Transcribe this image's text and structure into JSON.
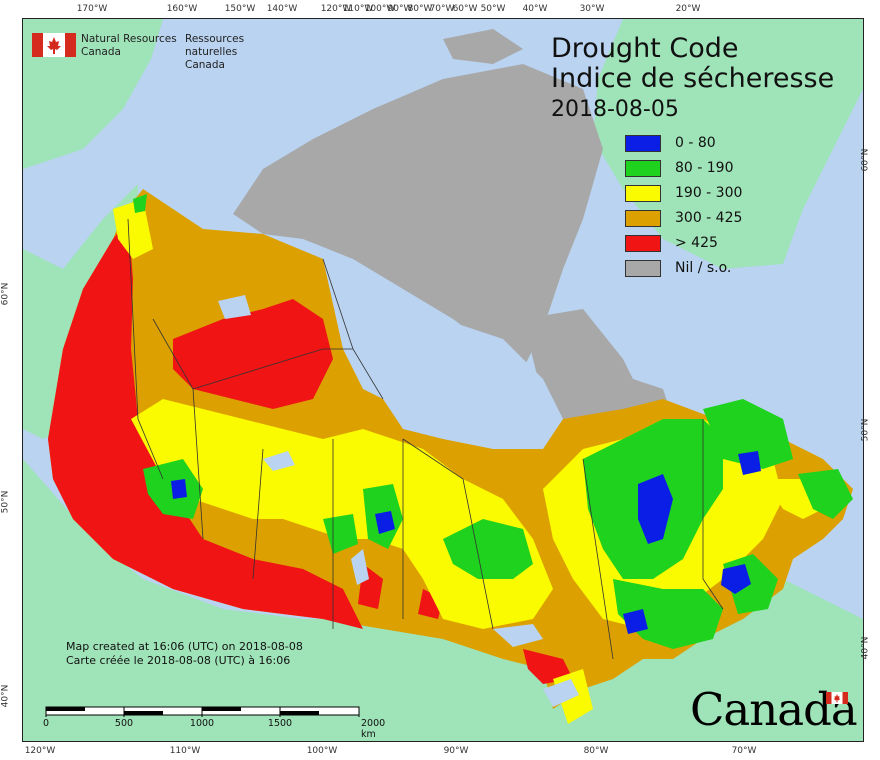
{
  "org": {
    "name_en_line1": "Natural Resources",
    "name_en_line2": "Canada",
    "name_fr_line1": "Ressources naturelles",
    "name_fr_line2": "Canada"
  },
  "title": {
    "en": "Drought Code",
    "fr": "Indice de sécheresse",
    "date": "2018-08-05"
  },
  "legend": [
    {
      "label": "0 - 80",
      "color": "#0a1ee6"
    },
    {
      "label": "80 - 190",
      "color": "#1ed21e"
    },
    {
      "label": "190 - 300",
      "color": "#fafa00"
    },
    {
      "label": "300 - 425",
      "color": "#dca000"
    },
    {
      "label": "> 425",
      "color": "#f01414"
    },
    {
      "label": "Nil / s.o.",
      "color": "#a8a8a8"
    }
  ],
  "credits": {
    "en": "Map created at 16:06 (UTC) on 2018-08-08",
    "fr": "Carte créée le 2018-08-08 (UTC) à 16:06"
  },
  "scale_bar": {
    "ticks": [
      "0",
      "500",
      "1000",
      "1500",
      "2000  km"
    ]
  },
  "graticule": {
    "top": [
      "170°W",
      "160°W",
      "150°W",
      "140°W",
      "120°W",
      "110°W",
      "100°W",
      "90°W",
      "80°W",
      "70°W",
      "60°W",
      "50°W",
      "40°W",
      "30°W",
      "20°W"
    ],
    "bottom": [
      "120°W",
      "110°W",
      "100°W",
      "90°W",
      "80°W",
      "70°W"
    ],
    "left": [
      "60°N",
      "50°N",
      "40°N"
    ],
    "right": [
      "60°N",
      "50°N",
      "40°N"
    ]
  },
  "wordmark": "Canada",
  "colors": {
    "ocean": "#b9d3f0",
    "foreign_land": "#9fe3b8",
    "nil": "#a8a8a8",
    "boundary": "#333333"
  }
}
